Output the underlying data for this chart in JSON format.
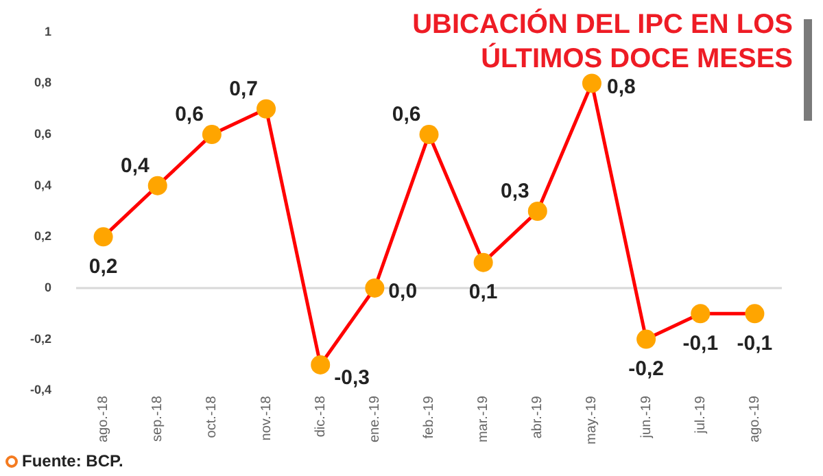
{
  "chart_data": {
    "type": "line",
    "title": "UBICACIÓN DEL IPC EN LOS ÚLTIMOS DOCE MESES",
    "categories": [
      "ago.-18",
      "sep.-18",
      "oct.-18",
      "nov.-18",
      "dic.-18",
      "ene.-19",
      "feb.-19",
      "mar.-19",
      "abr.-19",
      "may.-19",
      "jun.-19",
      "jul.-19",
      "ago.-19"
    ],
    "series": [
      {
        "color": "#ff0000",
        "colors": [
          "#ffa500",
          "#ffa500",
          "#ffa500",
          "#ffa500",
          "#ffa500",
          "#ffa500",
          "#ffa500",
          "#ffa500",
          "#ffa500",
          "#ffa500",
          "#ffa500",
          "#ffa500",
          "#ffa500"
        ],
        "values": [
          0.2,
          0.4,
          0.6,
          0.7,
          -0.3,
          0.0,
          0.6,
          0.1,
          0.3,
          0.8,
          -0.2,
          -0.1,
          -0.1
        ],
        "value_labels": [
          "0,2",
          "0,4",
          "0,6",
          "0,7",
          "-0,3",
          "0,0",
          "0,6",
          "0,1",
          "0,3",
          "0,8",
          "-0,2",
          "-0,1",
          "-0,1"
        ]
      }
    ],
    "marker": "circle",
    "ref_lines": [
      {
        "axis": "y",
        "value": 0,
        "color": "#d8d8d8"
      }
    ],
    "ylim": [
      -0.4,
      1
    ],
    "yticks": [
      {
        "value": -0.4,
        "label": "-0,4"
      },
      {
        "value": -0.2,
        "label": "-0,2"
      },
      0,
      {
        "value": 0.2,
        "label": "0,2"
      },
      {
        "value": 0.4,
        "label": "0,4"
      },
      {
        "value": 0.6,
        "label": "0,6"
      },
      {
        "value": 0.8,
        "label": "0,8"
      },
      1
    ],
    "grid": false,
    "legend": false,
    "annotations": [
      "Fuente: BCP."
    ]
  }
}
